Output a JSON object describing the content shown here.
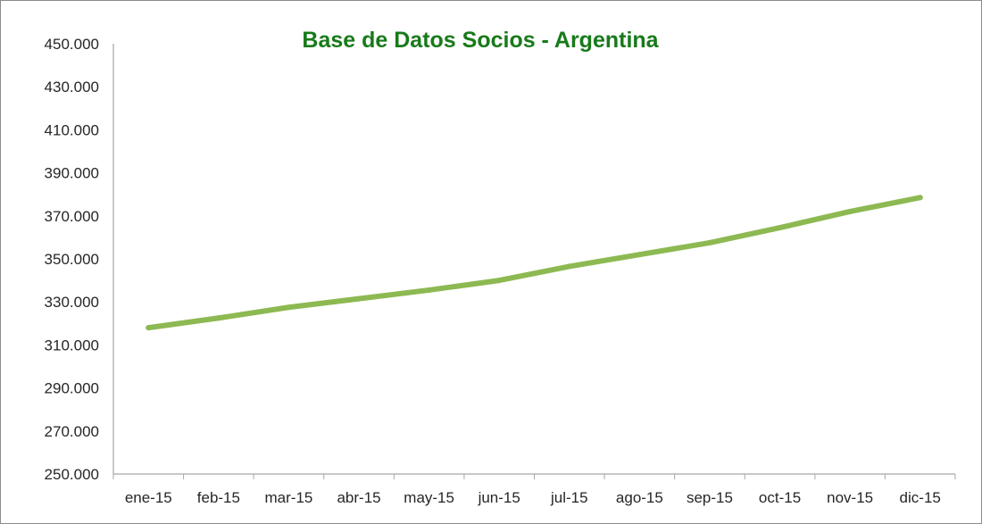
{
  "chart_data": {
    "type": "line",
    "title": "Base de Datos Socios - Argentina",
    "xlabel": "",
    "ylabel": "",
    "categories": [
      "ene-15",
      "feb-15",
      "mar-15",
      "abr-15",
      "may-15",
      "jun-15",
      "jul-15",
      "ago-15",
      "sep-15",
      "oct-15",
      "nov-15",
      "dic-15"
    ],
    "series": [
      {
        "values": [
          318000,
          322500,
          327500,
          331500,
          335500,
          340000,
          346500,
          352000,
          357500,
          364500,
          372000,
          378500
        ]
      }
    ],
    "ylim": [
      250000,
      450000
    ],
    "y_ticks": [
      "250.000",
      "270.000",
      "290.000",
      "310.000",
      "330.000",
      "350.000",
      "370.000",
      "390.000",
      "410.000",
      "430.000",
      "450.000"
    ],
    "y_tick_values": [
      250000,
      270000,
      290000,
      310000,
      330000,
      350000,
      370000,
      390000,
      410000,
      430000,
      450000
    ],
    "grid": false,
    "legend": "none",
    "colors": {
      "line": "#8DB952",
      "title": "#187A1A",
      "axis": "#a6a6a6",
      "text": "#262626"
    }
  }
}
